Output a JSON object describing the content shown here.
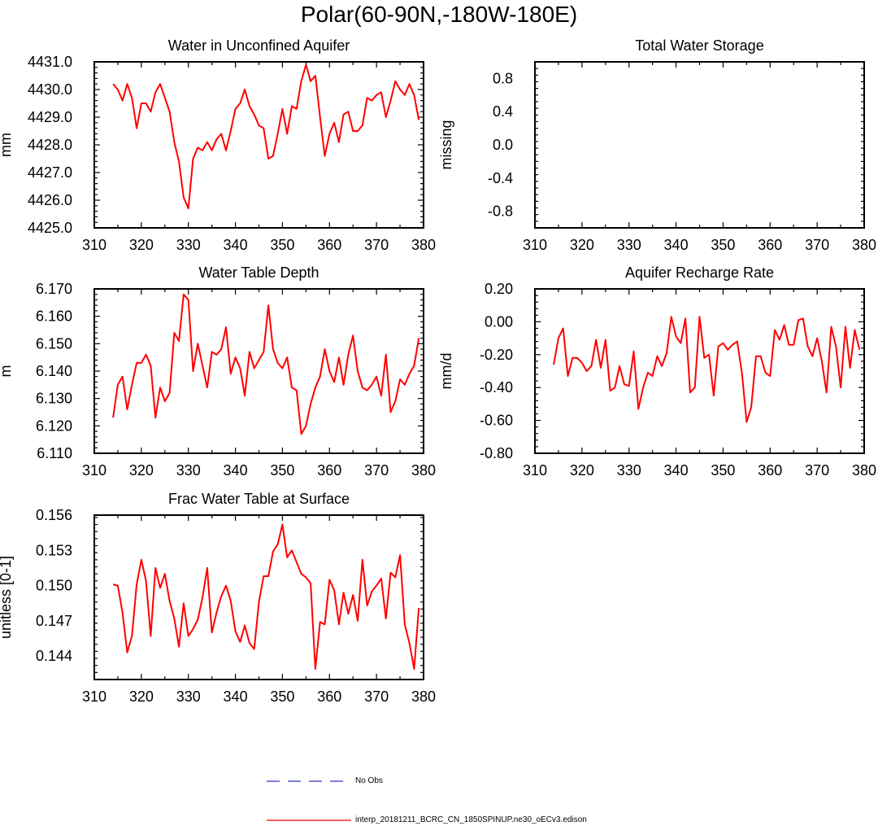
{
  "page_title": "Polar(60-90N,-180W-180E)",
  "chart_data": [
    {
      "type": "line",
      "title": "Water in Unconfined Aquifer",
      "xlabel": "",
      "ylabel": "mm",
      "xlim": [
        310,
        380
      ],
      "ylim": [
        4425.0,
        4431.0
      ],
      "xticks": [
        310,
        320,
        330,
        340,
        350,
        360,
        370,
        380
      ],
      "yticks": [
        4425.0,
        4426.0,
        4427.0,
        4428.0,
        4429.0,
        4430.0,
        4431.0
      ],
      "ytick_labels": [
        "4425.0",
        "4426.0",
        "4427.0",
        "4428.0",
        "4429.0",
        "4430.0",
        "4431.0"
      ],
      "series": [
        {
          "name": "interp_20181211_BCRC_CN_1850SPINUP.ne30_oECv3.edison",
          "color": "#ff0000",
          "x": [
            314,
            315,
            316,
            317,
            318,
            319,
            320,
            321,
            322,
            323,
            324,
            325,
            326,
            327,
            328,
            329,
            330,
            331,
            332,
            333,
            334,
            335,
            336,
            337,
            338,
            339,
            340,
            341,
            342,
            343,
            344,
            345,
            346,
            347,
            348,
            349,
            350,
            351,
            352,
            353,
            354,
            355,
            356,
            357,
            358,
            359,
            360,
            361,
            362,
            363,
            364,
            365,
            366,
            367,
            368,
            369,
            370,
            371,
            372,
            373,
            374,
            375,
            376,
            377,
            378,
            379
          ],
          "y": [
            4430.2,
            4430.0,
            4429.6,
            4430.2,
            4429.7,
            4428.6,
            4429.5,
            4429.5,
            4429.2,
            4429.9,
            4430.2,
            4429.7,
            4429.2,
            4428.1,
            4427.4,
            4426.1,
            4425.7,
            4427.5,
            4427.9,
            4427.8,
            4428.1,
            4427.8,
            4428.2,
            4428.4,
            4427.8,
            4428.5,
            4429.3,
            4429.5,
            4430.0,
            4429.4,
            4429.1,
            4428.7,
            4428.6,
            4427.5,
            4427.6,
            4428.4,
            4429.3,
            4428.4,
            4429.4,
            4429.3,
            4430.3,
            4430.9,
            4430.3,
            4430.5,
            4429.0,
            4427.6,
            4428.4,
            4428.8,
            4428.1,
            4429.1,
            4429.2,
            4428.5,
            4428.5,
            4428.7,
            4429.7,
            4429.6,
            4429.8,
            4429.9,
            4429.0,
            4429.6,
            4430.3,
            4430.0,
            4429.8,
            4430.2,
            4429.8,
            4428.9
          ]
        }
      ]
    },
    {
      "type": "line",
      "title": "Total Water Storage",
      "xlabel": "",
      "ylabel": "missing",
      "xlim": [
        310,
        380
      ],
      "ylim": [
        -1.0,
        1.0
      ],
      "xticks": [
        310,
        320,
        330,
        340,
        350,
        360,
        370,
        380
      ],
      "yticks": [
        -0.8,
        -0.4,
        0.0,
        0.4,
        0.8
      ],
      "ytick_labels": [
        "-0.8",
        "-0.4",
        "0.0",
        "0.4",
        "0.8"
      ],
      "series": []
    },
    {
      "type": "line",
      "title": "Water Table Depth",
      "xlabel": "",
      "ylabel": "m",
      "xlim": [
        310,
        380
      ],
      "ylim": [
        6.11,
        6.17
      ],
      "xticks": [
        310,
        320,
        330,
        340,
        350,
        360,
        370,
        380
      ],
      "yticks": [
        6.11,
        6.12,
        6.13,
        6.14,
        6.15,
        6.16,
        6.17
      ],
      "ytick_labels": [
        "6.110",
        "6.120",
        "6.130",
        "6.140",
        "6.150",
        "6.160",
        "6.170"
      ],
      "series": [
        {
          "name": "interp_20181211_BCRC_CN_1850SPINUP.ne30_oECv3.edison",
          "color": "#ff0000",
          "x": [
            314,
            315,
            316,
            317,
            318,
            319,
            320,
            321,
            322,
            323,
            324,
            325,
            326,
            327,
            328,
            329,
            330,
            331,
            332,
            333,
            334,
            335,
            336,
            337,
            338,
            339,
            340,
            341,
            342,
            343,
            344,
            345,
            346,
            347,
            348,
            349,
            350,
            351,
            352,
            353,
            354,
            355,
            356,
            357,
            358,
            359,
            360,
            361,
            362,
            363,
            364,
            365,
            366,
            367,
            368,
            369,
            370,
            371,
            372,
            373,
            374,
            375,
            376,
            377,
            378,
            379
          ],
          "y": [
            6.123,
            6.135,
            6.138,
            6.126,
            6.135,
            6.143,
            6.143,
            6.146,
            6.142,
            6.123,
            6.134,
            6.129,
            6.132,
            6.154,
            6.151,
            6.168,
            6.166,
            6.14,
            6.15,
            6.142,
            6.134,
            6.147,
            6.146,
            6.148,
            6.156,
            6.139,
            6.145,
            6.141,
            6.131,
            6.147,
            6.141,
            6.144,
            6.147,
            6.164,
            6.148,
            6.143,
            6.141,
            6.145,
            6.134,
            6.133,
            6.117,
            6.12,
            6.128,
            6.134,
            6.138,
            6.148,
            6.14,
            6.136,
            6.145,
            6.135,
            6.146,
            6.153,
            6.14,
            6.134,
            6.133,
            6.135,
            6.138,
            6.131,
            6.146,
            6.125,
            6.129,
            6.137,
            6.135,
            6.139,
            6.142,
            6.152
          ]
        }
      ]
    },
    {
      "type": "line",
      "title": "Aquifer Recharge Rate",
      "xlabel": "",
      "ylabel": "mm/d",
      "xlim": [
        310,
        380
      ],
      "ylim": [
        -0.8,
        0.2
      ],
      "xticks": [
        310,
        320,
        330,
        340,
        350,
        360,
        370,
        380
      ],
      "yticks": [
        -0.8,
        -0.6,
        -0.4,
        -0.2,
        0.0,
        0.2
      ],
      "ytick_labels": [
        "-0.80",
        "-0.60",
        "-0.40",
        "-0.20",
        "0.00",
        "0.20"
      ],
      "series": [
        {
          "name": "interp_20181211_BCRC_CN_1850SPINUP.ne30_oECv3.edison",
          "color": "#ff0000",
          "x": [
            314,
            315,
            316,
            317,
            318,
            319,
            320,
            321,
            322,
            323,
            324,
            325,
            326,
            327,
            328,
            329,
            330,
            331,
            332,
            333,
            334,
            335,
            336,
            337,
            338,
            339,
            340,
            341,
            342,
            343,
            344,
            345,
            346,
            347,
            348,
            349,
            350,
            351,
            352,
            353,
            354,
            355,
            356,
            357,
            358,
            359,
            360,
            361,
            362,
            363,
            364,
            365,
            366,
            367,
            368,
            369,
            370,
            371,
            372,
            373,
            374,
            375,
            376,
            377,
            378,
            379
          ],
          "y": [
            -0.26,
            -0.1,
            -0.04,
            -0.33,
            -0.22,
            -0.22,
            -0.25,
            -0.3,
            -0.27,
            -0.11,
            -0.28,
            -0.11,
            -0.42,
            -0.4,
            -0.27,
            -0.38,
            -0.39,
            -0.18,
            -0.53,
            -0.4,
            -0.31,
            -0.33,
            -0.21,
            -0.27,
            -0.19,
            0.03,
            -0.09,
            -0.13,
            0.02,
            -0.43,
            -0.4,
            0.03,
            -0.22,
            -0.2,
            -0.45,
            -0.15,
            -0.13,
            -0.17,
            -0.14,
            -0.12,
            -0.31,
            -0.61,
            -0.52,
            -0.21,
            -0.21,
            -0.31,
            -0.33,
            -0.05,
            -0.11,
            -0.02,
            -0.14,
            -0.14,
            0.01,
            0.02,
            -0.15,
            -0.21,
            -0.1,
            -0.24,
            -0.43,
            -0.03,
            -0.15,
            -0.4,
            -0.03,
            -0.28,
            -0.05,
            -0.17
          ]
        }
      ]
    },
    {
      "type": "line",
      "title": "Frac Water Table at Surface",
      "xlabel": "",
      "ylabel": "unitless [0-1]",
      "xlim": [
        310,
        380
      ],
      "ylim": [
        0.142,
        0.156
      ],
      "xticks": [
        310,
        320,
        330,
        340,
        350,
        360,
        370,
        380
      ],
      "yticks": [
        0.144,
        0.147,
        0.15,
        0.153,
        0.156
      ],
      "ytick_labels": [
        "0.144",
        "0.147",
        "0.150",
        "0.153",
        "0.156"
      ],
      "series": [
        {
          "name": "interp_20181211_BCRC_CN_1850SPINUP.ne30_oECv3.edison",
          "color": "#ff0000",
          "x": [
            314,
            315,
            316,
            317,
            318,
            319,
            320,
            321,
            322,
            323,
            324,
            325,
            326,
            327,
            328,
            329,
            330,
            331,
            332,
            333,
            334,
            335,
            336,
            337,
            338,
            339,
            340,
            341,
            342,
            343,
            344,
            345,
            346,
            347,
            348,
            349,
            350,
            351,
            352,
            353,
            354,
            355,
            356,
            357,
            358,
            359,
            360,
            361,
            362,
            363,
            364,
            365,
            366,
            367,
            368,
            369,
            370,
            371,
            372,
            373,
            374,
            375,
            376,
            377,
            378,
            379
          ],
          "y": [
            0.1501,
            0.15,
            0.1477,
            0.1443,
            0.1457,
            0.1501,
            0.1522,
            0.1504,
            0.1457,
            0.1515,
            0.1498,
            0.151,
            0.1487,
            0.1472,
            0.1448,
            0.1485,
            0.1457,
            0.1463,
            0.1471,
            0.149,
            0.1515,
            0.146,
            0.1477,
            0.1491,
            0.15,
            0.1487,
            0.1461,
            0.1452,
            0.1466,
            0.1451,
            0.1446,
            0.1486,
            0.1508,
            0.1508,
            0.1529,
            0.1535,
            0.1552,
            0.1524,
            0.153,
            0.152,
            0.151,
            0.1507,
            0.1502,
            0.1429,
            0.1469,
            0.1467,
            0.1505,
            0.1496,
            0.1467,
            0.1494,
            0.1476,
            0.1492,
            0.147,
            0.1522,
            0.1483,
            0.1495,
            0.15,
            0.1506,
            0.1472,
            0.1511,
            0.1507,
            0.1526,
            0.1467,
            0.1451,
            0.1429,
            0.1481
          ]
        }
      ]
    }
  ],
  "legend": {
    "obs_label": "No Obs",
    "obs_color": "#3333cc",
    "model_label": "interp_20181211_BCRC_CN_1850SPINUP.ne30_oECv3.edison",
    "model_color": "#ff0000"
  }
}
